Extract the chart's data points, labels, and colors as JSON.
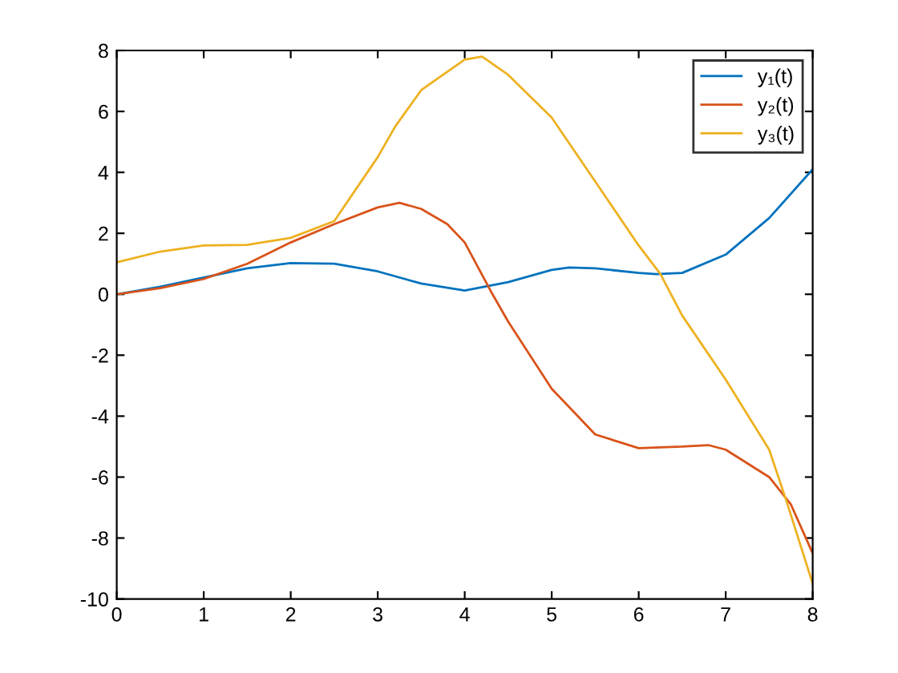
{
  "chart_data": {
    "type": "line",
    "xlim": [
      0,
      8
    ],
    "ylim": [
      -10,
      8
    ],
    "xticks": [
      0,
      1,
      2,
      3,
      4,
      5,
      6,
      7,
      8
    ],
    "yticks": [
      -10,
      -8,
      -6,
      -4,
      -2,
      0,
      2,
      4,
      6,
      8
    ],
    "grid": false,
    "legend": "top right",
    "marker": "none",
    "line_style": "solid",
    "series": [
      {
        "name": "y₁(t)",
        "color": "#0072bd",
        "x": [
          0,
          0.5,
          1,
          1.5,
          2,
          2.5,
          3,
          3.5,
          4,
          4.5,
          5,
          5.2,
          5.5,
          6,
          6.2,
          6.5,
          7,
          7.5,
          8
        ],
        "values": [
          0,
          0.25,
          0.55,
          0.85,
          1.02,
          1.0,
          0.75,
          0.35,
          0.12,
          0.4,
          0.8,
          0.88,
          0.85,
          0.7,
          0.66,
          0.7,
          1.3,
          2.5,
          4.1
        ]
      },
      {
        "name": "y₂(t)",
        "color": "#d95319",
        "x": [
          0,
          0.5,
          1,
          1.5,
          2,
          2.5,
          3,
          3.25,
          3.5,
          3.8,
          4,
          4.3,
          4.5,
          5,
          5.5,
          6,
          6.5,
          6.8,
          7,
          7.5,
          7.75,
          8
        ],
        "values": [
          0,
          0.2,
          0.5,
          1.0,
          1.7,
          2.3,
          2.85,
          3.0,
          2.8,
          2.3,
          1.7,
          0.1,
          -0.9,
          -3.1,
          -4.6,
          -5.05,
          -5.0,
          -4.95,
          -5.1,
          -6.0,
          -6.9,
          -8.5
        ]
      },
      {
        "name": "y₃(t)",
        "color": "#edb120",
        "x": [
          0,
          0.5,
          1,
          1.5,
          2,
          2.5,
          3,
          3.2,
          3.5,
          4,
          4.2,
          4.5,
          5,
          5.5,
          6,
          6.25,
          6.5,
          7,
          7.5,
          7.7,
          8
        ],
        "values": [
          1.05,
          1.4,
          1.6,
          1.62,
          1.85,
          2.4,
          4.5,
          5.5,
          6.7,
          7.7,
          7.8,
          7.2,
          5.8,
          3.7,
          1.6,
          0.66,
          -0.7,
          -2.8,
          -5.1,
          -6.8,
          -9.5
        ]
      }
    ]
  }
}
